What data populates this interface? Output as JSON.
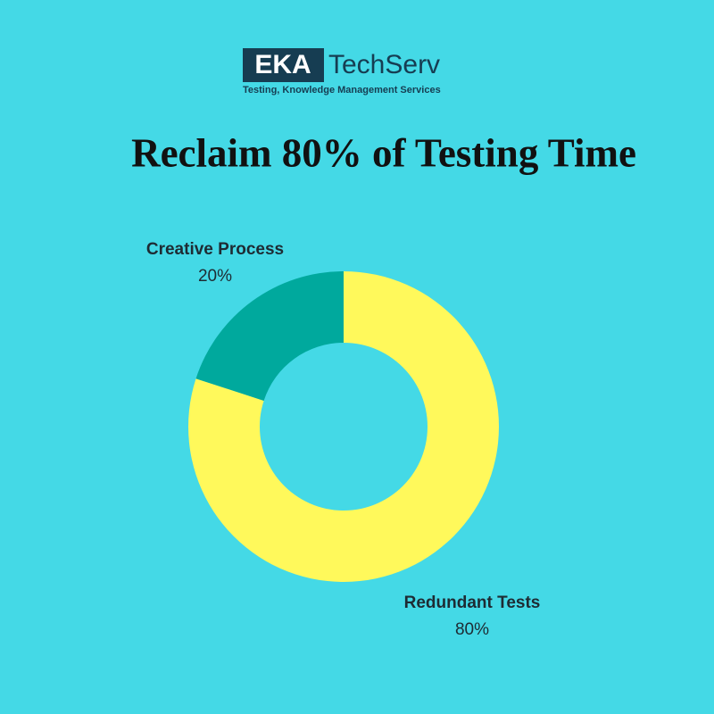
{
  "logo": {
    "mark": "EKA",
    "name": "TechServ",
    "tagline": "Testing, Knowledge Management Services"
  },
  "chart_data": {
    "type": "donut",
    "title": "Reclaim 80% of Testing Time",
    "categories": [
      "Redundant Tests",
      "Creative Process"
    ],
    "values": [
      80,
      20
    ],
    "value_labels": [
      "80%",
      "20%"
    ],
    "colors": [
      "#fff95b",
      "#00a99d"
    ]
  }
}
